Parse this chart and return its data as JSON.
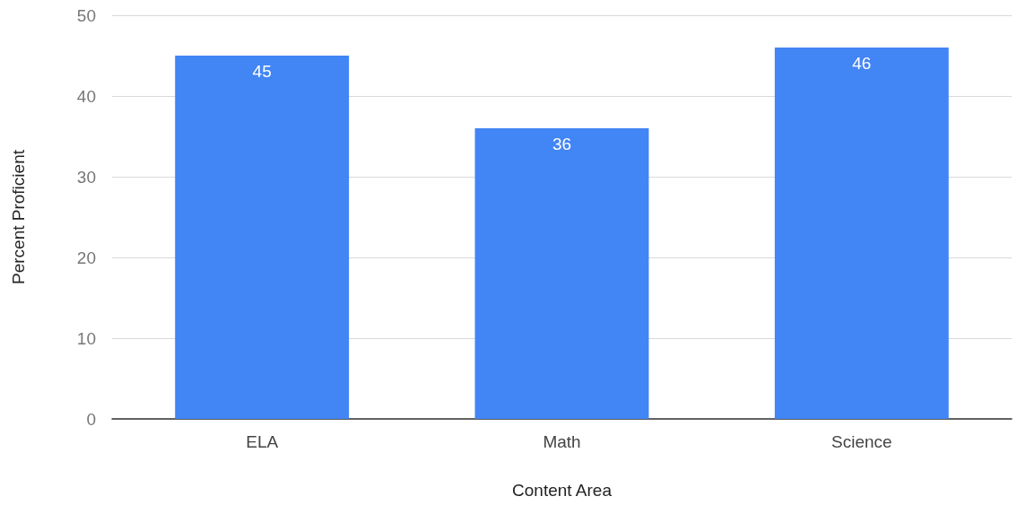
{
  "chart_data": {
    "type": "bar",
    "xlabel": "Content Area",
    "ylabel": "Percent Proficient",
    "categories": [
      "ELA",
      "Math",
      "Science"
    ],
    "values": [
      45,
      36,
      46
    ],
    "color": "#4285f4",
    "ylim": [
      0,
      50
    ],
    "yticks": [
      0,
      10,
      20,
      30,
      40,
      50
    ],
    "grid": "y",
    "data_labels": true
  }
}
